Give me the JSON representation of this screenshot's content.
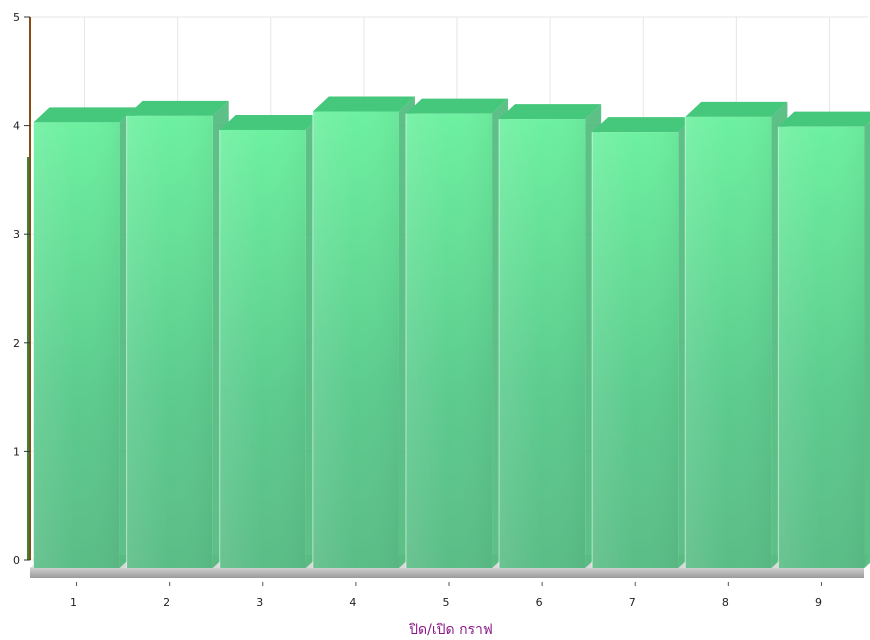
{
  "chart_data": {
    "type": "bar",
    "style": "3d-column",
    "categories": [
      "1",
      "2",
      "3",
      "4",
      "5",
      "6",
      "7",
      "8",
      "9"
    ],
    "series": [
      {
        "values": [
          4.03,
          4.09,
          3.96,
          4.13,
          4.11,
          4.06,
          3.94,
          4.08,
          3.99
        ]
      }
    ],
    "y_ticks": [
      "0",
      "1",
      "2",
      "3",
      "4",
      "5"
    ],
    "ylim": [
      0,
      5
    ],
    "grid": true,
    "colors": {
      "bar_face": "#5fd894",
      "bar_top": "#45c77c",
      "bar_side": "#3fb572",
      "y_axis_line": "#8b4a12",
      "floor": "#b8b8b8",
      "grid": "#e6e6e6",
      "toggle_text": "#8b1a8b"
    }
  },
  "legend": {
    "toggle_label": "ปิด/เปิด กราฟ"
  }
}
